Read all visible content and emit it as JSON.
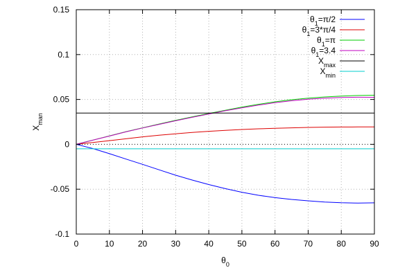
{
  "chart_data": {
    "type": "line",
    "xlabel": "θ",
    "xlabel_sub": "0",
    "ylabel": "X",
    "ylabel_sub": "man",
    "xlim": [
      0,
      90
    ],
    "ylim": [
      -0.1,
      0.15
    ],
    "x_ticks": [
      0,
      10,
      20,
      30,
      40,
      50,
      60,
      70,
      80,
      90
    ],
    "x_tick_labels": [
      "0",
      "10",
      "20",
      "30",
      "40",
      "50",
      "60",
      "70",
      "80",
      "90"
    ],
    "y_ticks": [
      -0.1,
      -0.05,
      0,
      0.05,
      0.1,
      0.15
    ],
    "y_tick_labels": [
      "-0.1",
      "-0.05",
      "0",
      "0.05",
      "0.1",
      "0.15"
    ],
    "grid": true,
    "zero_line": true,
    "legend_position": "top-right",
    "x": [
      0,
      5,
      10,
      15,
      20,
      25,
      30,
      35,
      40,
      45,
      50,
      55,
      60,
      65,
      70,
      75,
      80,
      85,
      90
    ],
    "series": [
      {
        "name_main": "θ",
        "name_sub": "1",
        "name_rest": "=π/2",
        "color": "#0000ff",
        "values": [
          0,
          -0.0047,
          -0.0104,
          -0.0164,
          -0.0223,
          -0.0284,
          -0.0344,
          -0.0398,
          -0.0448,
          -0.0494,
          -0.0534,
          -0.0568,
          -0.0594,
          -0.0614,
          -0.063,
          -0.0643,
          -0.0651,
          -0.0655,
          -0.0652
        ]
      },
      {
        "name_main": "θ",
        "name_sub": "1",
        "name_rest": "=3*π/4",
        "color": "#dd0000",
        "values": [
          0,
          0.0021,
          0.0041,
          0.0062,
          0.0083,
          0.0101,
          0.0117,
          0.0132,
          0.0145,
          0.0156,
          0.0165,
          0.0173,
          0.0179,
          0.0184,
          0.0188,
          0.0191,
          0.0193,
          0.0194,
          0.0194
        ]
      },
      {
        "name_main": "θ",
        "name_sub": "1",
        "name_rest": "=π",
        "color": "#00cc00",
        "values": [
          0,
          0.0047,
          0.0094,
          0.0141,
          0.0184,
          0.0226,
          0.0267,
          0.0306,
          0.0343,
          0.038,
          0.0415,
          0.0446,
          0.0474,
          0.0497,
          0.0515,
          0.0528,
          0.0538,
          0.0544,
          0.0547
        ]
      },
      {
        "name_main": "θ",
        "name_sub": "1",
        "name_rest": "=3.4",
        "color": "#c000c0",
        "values": [
          0,
          0.0046,
          0.0092,
          0.0139,
          0.0182,
          0.0222,
          0.0262,
          0.0301,
          0.0338,
          0.0374,
          0.0407,
          0.0437,
          0.0464,
          0.0485,
          0.0503,
          0.0515,
          0.0522,
          0.0525,
          0.0524
        ]
      },
      {
        "name_main": "X",
        "name_sub": "max",
        "name_rest": "",
        "color": "#000000",
        "values": [
          0.0348,
          0.0348,
          0.0348,
          0.0348,
          0.0348,
          0.0348,
          0.0348,
          0.0348,
          0.0348,
          0.0348,
          0.0348,
          0.0348,
          0.0348,
          0.0348,
          0.0348,
          0.0348,
          0.0348,
          0.0348,
          0.0348
        ]
      },
      {
        "name_main": "X",
        "name_sub": "min",
        "name_rest": "",
        "color": "#00cccc",
        "values": [
          -0.005,
          -0.005,
          -0.005,
          -0.005,
          -0.005,
          -0.005,
          -0.005,
          -0.005,
          -0.005,
          -0.005,
          -0.005,
          -0.005,
          -0.005,
          -0.005,
          -0.005,
          -0.005,
          -0.005,
          -0.005,
          -0.005
        ]
      }
    ]
  }
}
